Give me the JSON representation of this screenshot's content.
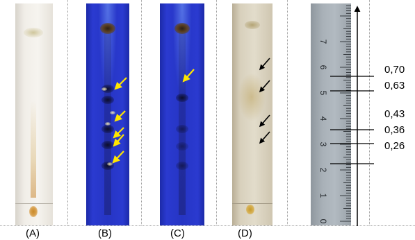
{
  "panel_labels": [
    "(A)",
    "(B)",
    "(C)",
    "(D)"
  ],
  "ruler_numbers": [
    "7",
    "6",
    "5",
    "4",
    "3",
    "2",
    "1",
    "0"
  ],
  "rf_values": [
    "0,70",
    "0,63",
    "0,43",
    "0,36",
    "0,26"
  ],
  "colors": {
    "uv_plate": "#2635c4",
    "white_plate": "#f3f0ea",
    "beige_plate": "#ddd6c4",
    "arrow_yellow": "#ffe600",
    "arrow_black": "#000000",
    "ruler": "#a7afb6"
  },
  "icons": {
    "uv_arrows": "arrow-down-left-yellow",
    "visible_arrows": "arrow-down-left-black",
    "solvent_front": "arrow-up"
  }
}
